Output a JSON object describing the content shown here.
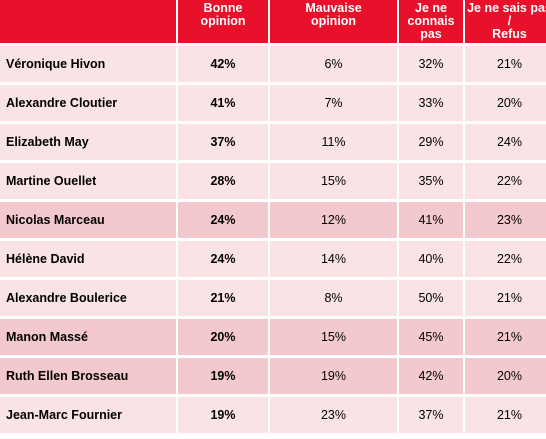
{
  "table": {
    "headers": [
      "",
      "Bonne\nopinion",
      "Mauvaise\nopinion",
      "Je ne\nconnais\npas",
      "Je ne sais pas /\nRefus"
    ],
    "rows": [
      {
        "name": "Véronique Hivon",
        "bonne": "42%",
        "mauvaise": "6%",
        "connais": "32%",
        "refus": "21%",
        "shade": "light"
      },
      {
        "name": "Alexandre Cloutier",
        "bonne": "41%",
        "mauvaise": "7%",
        "connais": "33%",
        "refus": "20%",
        "shade": "light"
      },
      {
        "name": "Elizabeth May",
        "bonne": "37%",
        "mauvaise": "11%",
        "connais": "29%",
        "refus": "24%",
        "shade": "light"
      },
      {
        "name": "Martine Ouellet",
        "bonne": "28%",
        "mauvaise": "15%",
        "connais": "35%",
        "refus": "22%",
        "shade": "light"
      },
      {
        "name": "Nicolas Marceau",
        "bonne": "24%",
        "mauvaise": "12%",
        "connais": "41%",
        "refus": "23%",
        "shade": "dark"
      },
      {
        "name": "Hélène David",
        "bonne": "24%",
        "mauvaise": "14%",
        "connais": "40%",
        "refus": "22%",
        "shade": "light"
      },
      {
        "name": "Alexandre Boulerice",
        "bonne": "21%",
        "mauvaise": "8%",
        "connais": "50%",
        "refus": "21%",
        "shade": "light"
      },
      {
        "name": "Manon Massé",
        "bonne": "20%",
        "mauvaise": "15%",
        "connais": "45%",
        "refus": "21%",
        "shade": "dark"
      },
      {
        "name": "Ruth Ellen Brosseau",
        "bonne": "19%",
        "mauvaise": "19%",
        "connais": "42%",
        "refus": "20%",
        "shade": "dark"
      },
      {
        "name": "Jean-Marc Fournier",
        "bonne": "19%",
        "mauvaise": "23%",
        "connais": "37%",
        "refus": "21%",
        "shade": "light"
      }
    ]
  },
  "colors": {
    "header": "#e8102a",
    "row_light": "#f9e3e5",
    "row_dark": "#f3c9cd"
  }
}
